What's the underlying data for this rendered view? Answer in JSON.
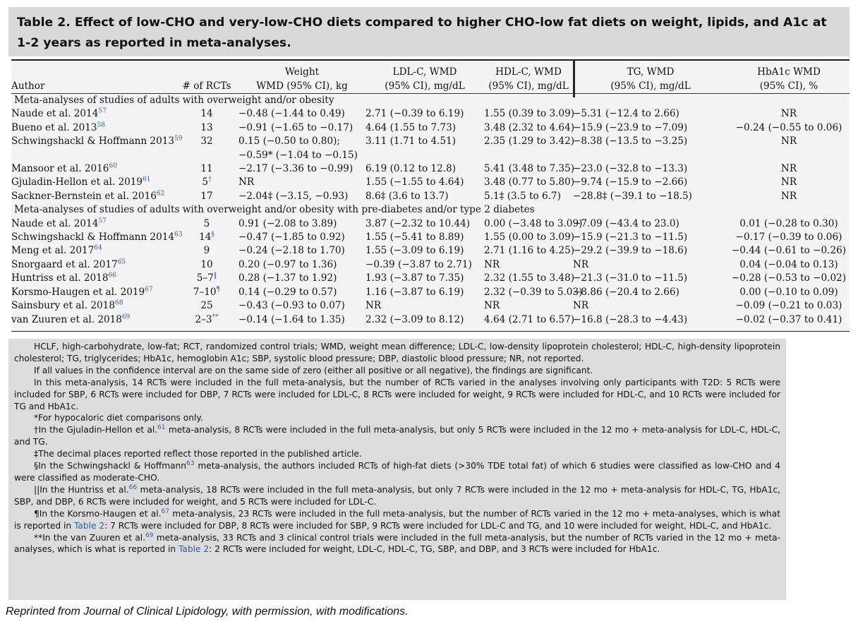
{
  "title": "Table 2. Effect of low-CHO and very-low-CHO diets compared to higher CHO-low fat diets on weight, lipids, and A1c at 1-2 years as reported in meta-analyses.",
  "headers": {
    "author": "Author",
    "rcts": "# of RCTs",
    "weight_1": "Weight",
    "weight_2": "WMD (95% CI), kg",
    "ldl_1": "LDL-C, WMD",
    "ldl_2": "(95% CI), mg/dL",
    "hdl_1": "HDL-C, WMD",
    "hdl_2": "(95% CI), mg/dL",
    "tg_1": "TG, WMD",
    "tg_2": "(95% CI), mg/dL",
    "a1c_1": "HbA1c WMD",
    "a1c_2": "(95% CI), %"
  },
  "section1": "Meta-analyses of studies of adults with overweight and/or obesity",
  "section2": "Meta-analyses of studies of adults with overweight and/or obesity with pre-diabetes and/or type 2 diabetes",
  "rows1": [
    {
      "author": "Naude et al. 2014",
      "ref": "57",
      "rcts": "14",
      "rct_mark": "",
      "weight": "−0.48 (−1.44 to 0.49)",
      "ldl": "2.71 (−0.39 to 6.19)",
      "hdl": "1.55 (0.39 to 3.09)",
      "tg": "−5.31 (−12.4 to 2.66)",
      "a1c": "NR"
    },
    {
      "author": "Bueno et al. 2013",
      "ref": "58",
      "rcts": "13",
      "rct_mark": "",
      "weight": "−0.91 (−1.65 to −0.17)",
      "ldl": "4.64 (1.55 to 7.73)",
      "hdl": "3.48 (2.32 to 4.64)",
      "tg": "−15.9 (−23.9 to −7.09)",
      "a1c": "−0.24 (−0.55 to 0.06)"
    },
    {
      "author": "Schwingshackl & Hoffmann 2013",
      "ref": "59",
      "rcts": "32",
      "rct_mark": "",
      "weight": "0.15 (−0.50 to 0.80);",
      "ldl": "3.11 (1.71 to 4.51)",
      "hdl": "2.35 (1.29 to 3.42)",
      "tg": "−8.38 (−13.5 to −3.25)",
      "a1c": "NR"
    },
    {
      "author": "",
      "ref": "",
      "rcts": "",
      "rct_mark": "",
      "weight": "−0.59* (−1.04 to −0.15)",
      "ldl": "",
      "hdl": "",
      "tg": "",
      "a1c": ""
    },
    {
      "author": "Mansoor et al. 2016",
      "ref": "60",
      "rcts": "11",
      "rct_mark": "",
      "weight": "−2.17 (−3.36 to −0.99)",
      "ldl": "6.19 (0.12 to 12.8)",
      "hdl": "5.41 (3.48 to 7.35)",
      "tg": "−23.0 (−32.8 to −13.3)",
      "a1c": "NR"
    },
    {
      "author": "Gjuladin-Hellon et al. 2019",
      "ref": "61",
      "rcts": "5",
      "rct_mark": "†",
      "weight": "NR",
      "ldl": "1.55 (−1.55 to 4.64)",
      "hdl": "3.48 (0.77 to 5.80)",
      "tg": "−9.74 (−15.9 to −2.66)",
      "a1c": "NR"
    },
    {
      "author": "Sackner-Bernstein et al. 2016",
      "ref": "62",
      "rcts": "17",
      "rct_mark": "",
      "weight": "−2.04‡ (−3.15, −0.93)",
      "ldl": "8.6‡ (3.6 to 13.7)",
      "hdl": "5.1‡ (3.5 to 6.7)",
      "tg": "−28.8‡ (−39.1 to −18.5)",
      "a1c": "NR"
    }
  ],
  "rows2": [
    {
      "author": "Naude et al. 2014",
      "ref": "57",
      "rcts": "5",
      "rct_mark": "",
      "weight": "0.91 (−2.08 to 3.89)",
      "ldl": "3.87 (−2.32 to 10.44)",
      "hdl": "0.00 (−3.48 to 3.09)",
      "tg": "−7.09 (−43.4 to 23.0)",
      "a1c": "0.01 (−0.28 to 0.30)"
    },
    {
      "author": "Schwingshackl & Hoffmann 2014",
      "ref": "63",
      "rcts": "14",
      "rct_mark": "§",
      "weight": "−0.47 (−1.85 to 0.92)",
      "ldl": "1.55 (−5.41 to 8.89)",
      "hdl": "1.55 (0.00 to 3.09)",
      "tg": "−15.9 (−21.3 to −11.5)",
      "a1c": "−0.17 (−0.39 to 0.06)"
    },
    {
      "author": "Meng et al. 2017",
      "ref": "64",
      "rcts": "9",
      "rct_mark": "",
      "weight": "−0.24 (−2.18 to 1.70)",
      "ldl": "1.55 (−3.09 to 6.19)",
      "hdl": "2.71 (1.16 to 4.25)",
      "tg": "−29.2 (−39.9 to −18.6)",
      "a1c": "−0.44 (−0.61 to −0.26)"
    },
    {
      "author": "Snorgaard et al. 2017",
      "ref": "65",
      "rcts": "10",
      "rct_mark": "",
      "weight": "0.20 (−0.97 to 1.36)",
      "ldl": "−0.39 (−3.87 to 2.71)",
      "hdl": "NR",
      "tg": "NR",
      "a1c": "0.04 (−0.04 to 0.13)"
    },
    {
      "author": "Huntriss et al. 2018",
      "ref": "66",
      "rcts": "5–7",
      "rct_mark": "‖",
      "weight": "0.28 (−1.37 to 1.92)",
      "ldl": "1.93 (−3.87 to 7.35)",
      "hdl": "2.32 (1.55 to 3.48)",
      "tg": "−21.3 (−31.0 to −11.5)",
      "a1c": "−0.28 (−0.53 to −0.02)"
    },
    {
      "author": "Korsmo-Haugen et al. 2019",
      "ref": "67",
      "rcts": "7–10",
      "rct_mark": "¶",
      "weight": "0.14 (−0.29 to 0.57)",
      "ldl": "1.16 (−3.87 to 6.19)",
      "hdl": "2.32 (−0.39 to 5.03)",
      "tg": "−8.86 (−20.4 to 2.66)",
      "a1c": "0.00 (−0.10 to 0.09)"
    },
    {
      "author": "Sainsbury et al. 2018",
      "ref": "68",
      "rcts": "25",
      "rct_mark": "",
      "weight": "−0.43 (−0.93 to 0.07)",
      "ldl": "NR",
      "hdl": "NR",
      "tg": "NR",
      "a1c": "−0.09 (−0.21 to 0.03)"
    },
    {
      "author": "van Zuuren et al. 2018",
      "ref": "69",
      "rcts": "2–3",
      "rct_mark": "**",
      "weight": "−0.14 (−1.64 to 1.35)",
      "ldl": "2.32 (−3.09 to 8.12)",
      "hdl": "4.64 (2.71 to 6.57)",
      "tg": "−16.8 (−28.3 to −4.43)",
      "a1c": "−0.02 (−0.37 to 0.41)"
    }
  ],
  "notes": {
    "abbrev": "HCLF, high-carbohydrate, low-fat; RCT, randomized control trials; WMD, weight mean difference; LDL-C, low-density lipoprotein cholesterol; HDL-C, high-density lipoprotein cholesterol; TG, triglycerides; HbA1c, hemoglobin A1c; SBP, systolic blood pressure; DBP, diastolic blood pressure; NR, not reported.",
    "signif": "If all values in the confidence interval are on the same side of zero (either all positive or all negative), the findings are significant.",
    "t2d": "In this meta-analysis, 14 RCTs were included in the full meta-analysis, but the number of RCTs varied in the analyses involving only participants with T2D: 5 RCTs were included for SBP, 6 RCTs were included for DBP, 7 RCTs were included for LDL-C, 8 RCTs were included for weight, 9 RCTs were included for HDL-C, and 10 RCTs were included for TG and HbA1c.",
    "star": "*For hypocaloric diet comparisons only.",
    "dagger_a": "†In the Gjuladin-Hellon et al.",
    "dagger_ref": "61",
    "dagger_b": " meta-analysis, 8 RCTs were included in the full meta-analysis, but only 5 RCTs were included in the 12 mo + meta-analysis for LDL-C, HDL-C, and TG.",
    "ddagger": "‡The decimal places reported reflect those reported in the published article.",
    "sect_a": "§In the Schwingshackl & Hoffmann",
    "sect_ref": "63",
    "sect_b": " meta-analysis, the authors included RCTs of high-fat diets (>30% TDE total fat) of which 6 studies were classified as low-CHO and 4 were classified as moderate-CHO.",
    "par_a": "||In the Huntriss et al.",
    "par_ref": "66",
    "par_b": " meta-analysis, 18 RCTs were included in the full meta-analysis, but only 7 RCTs were included in the 12 mo + meta-analysis for HDL-C, TG, HbA1c, SBP, and DBP, 6 RCTs were included for weight, and 5 RCTs were included for LDL-C.",
    "pil_a": "¶In the Korsmo-Haugen et al.",
    "pil_ref": "67",
    "pil_b": " meta-analysis, 23 RCTs were included in the full meta-analysis, but the number of RCTs varied in the 12 mo + meta-analyses, which is what is reported in ",
    "pil_link": "Table 2",
    "pil_c": ": 7 RCTs were included for DBP, 8 RCTs were included for SBP, 9 RCTs were included for LDL-C and TG, and 10 were included for weight, HDL-C, and HbA1c.",
    "ds_a": "**In the van Zuuren et al.",
    "ds_ref": "69",
    "ds_b": " meta-analysis, 33 RCTs and 3 clinical control trials were included in the full meta-analysis, but the number of RCTs varied in the 12 mo + meta-analyses, which is what is reported in ",
    "ds_link": "Table 2",
    "ds_c": ": 2 RCTs were included for weight, LDL-C, HDL-C, TG, SBP, and DBP, and 3 RCTs were included for HbA1c."
  },
  "footer": "Reprinted from Journal of Clinical Lipidology, with permission, with modifications."
}
